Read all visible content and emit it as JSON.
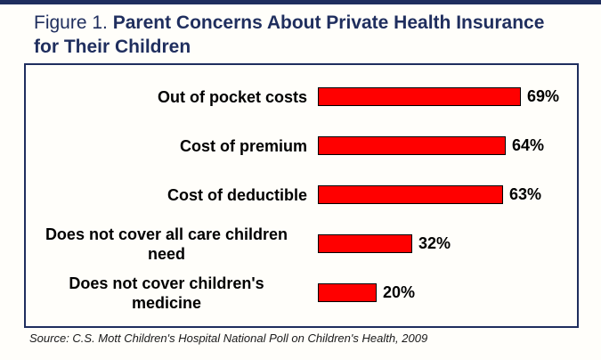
{
  "header": {
    "title_prefix": "Figure 1. ",
    "title_bold": "Parent Concerns About Private Health Insurance for Their Children"
  },
  "source_note": "Source: C.S. Mott Children's Hospital National Poll on Children's Health, 2009",
  "colors": {
    "navy": "#1f2e5e",
    "bar_fill": "#ff0000",
    "bar_border": "#000000",
    "label_text": "#000000"
  },
  "chart_data": {
    "type": "bar",
    "orientation": "horizontal",
    "title": "Figure 1. Parent Concerns About Private Health Insurance for Their Children",
    "categories": [
      "Out of pocket costs",
      "Cost of premium",
      "Cost of deductible",
      "Does not cover all care children need",
      "Does not cover children's medicine"
    ],
    "values": [
      69,
      64,
      63,
      32,
      20
    ],
    "value_labels": [
      "69%",
      "64%",
      "63%",
      "32%",
      "20%"
    ],
    "label_lines": [
      [
        "Out of pocket costs"
      ],
      [
        "Cost of premium"
      ],
      [
        "Cost of deductible"
      ],
      [
        "Does not cover all care children",
        "need"
      ],
      [
        "Does not cover children's",
        "medicine"
      ]
    ],
    "xlim": [
      0,
      100
    ],
    "grid": false,
    "legend": false,
    "value_label_position": "end-of-bar",
    "source": "Source: C.S. Mott Children's Hospital National Poll on Children's Health, 2009"
  }
}
